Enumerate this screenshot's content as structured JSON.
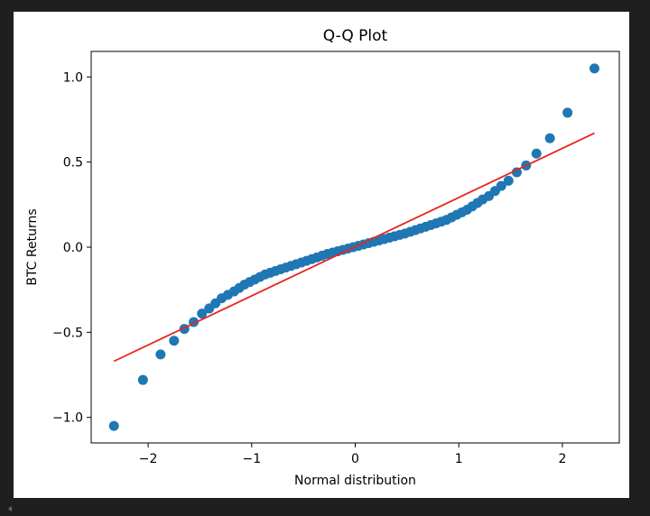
{
  "chart_data": {
    "type": "scatter",
    "title": "Q-Q Plot",
    "xlabel": "Normal distribution",
    "ylabel": "BTC Returns",
    "xlim": [
      -2.55,
      2.55
    ],
    "ylim": [
      -1.15,
      1.15
    ],
    "xticks": [
      -2,
      -1,
      0,
      1,
      2
    ],
    "xtick_labels": [
      "−2",
      "−1",
      "0",
      "1",
      "2"
    ],
    "yticks": [
      -1.0,
      -0.5,
      0.0,
      0.5,
      1.0
    ],
    "ytick_labels": [
      "−1.0",
      "−0.5",
      "0.0",
      "0.5",
      "1.0"
    ],
    "grid": false,
    "series": [
      {
        "kind": "points",
        "color": "#1f77b4",
        "x": [
          -2.33,
          -2.05,
          -1.88,
          -1.75,
          -1.65,
          -1.56,
          -1.48,
          -1.41,
          -1.35,
          -1.29,
          -1.23,
          -1.17,
          -1.12,
          -1.07,
          -1.02,
          -0.97,
          -0.92,
          -0.87,
          -0.82,
          -0.77,
          -0.72,
          -0.67,
          -0.62,
          -0.57,
          -0.52,
          -0.47,
          -0.42,
          -0.37,
          -0.32,
          -0.27,
          -0.22,
          -0.17,
          -0.12,
          -0.07,
          -0.02,
          0.03,
          0.08,
          0.13,
          0.18,
          0.23,
          0.28,
          0.33,
          0.38,
          0.43,
          0.48,
          0.53,
          0.58,
          0.63,
          0.68,
          0.73,
          0.78,
          0.83,
          0.88,
          0.93,
          0.98,
          1.03,
          1.08,
          1.13,
          1.18,
          1.23,
          1.29,
          1.35,
          1.41,
          1.48,
          1.56,
          1.65,
          1.75,
          1.88,
          2.05,
          2.31
        ],
        "y": [
          -1.05,
          -0.78,
          -0.63,
          -0.55,
          -0.48,
          -0.44,
          -0.39,
          -0.36,
          -0.33,
          -0.3,
          -0.28,
          -0.26,
          -0.24,
          -0.22,
          -0.205,
          -0.19,
          -0.175,
          -0.16,
          -0.15,
          -0.14,
          -0.13,
          -0.12,
          -0.11,
          -0.1,
          -0.09,
          -0.08,
          -0.07,
          -0.06,
          -0.05,
          -0.04,
          -0.032,
          -0.024,
          -0.016,
          -0.008,
          0.0,
          0.008,
          0.016,
          0.024,
          0.032,
          0.04,
          0.048,
          0.056,
          0.064,
          0.072,
          0.08,
          0.09,
          0.1,
          0.11,
          0.12,
          0.13,
          0.14,
          0.15,
          0.16,
          0.175,
          0.19,
          0.205,
          0.22,
          0.24,
          0.26,
          0.28,
          0.3,
          0.33,
          0.36,
          0.39,
          0.44,
          0.48,
          0.55,
          0.64,
          0.79,
          1.05
        ]
      },
      {
        "kind": "reference-line",
        "color": "#e8251d",
        "x": [
          -2.33,
          2.31
        ],
        "y": [
          -0.67,
          0.67
        ]
      }
    ]
  }
}
